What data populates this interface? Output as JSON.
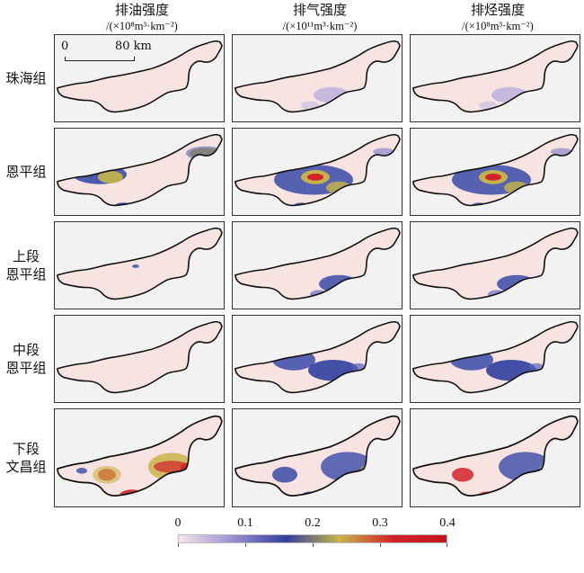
{
  "columns": [
    {
      "title": "排油强度",
      "unit": "/(×10⁸m³·km⁻²)"
    },
    {
      "title": "排气强度",
      "unit": "/(×10¹¹m³·km⁻²)"
    },
    {
      "title": "排烃强度",
      "unit": "/(×10⁸m³·km⁻²)"
    }
  ],
  "rows": [
    {
      "line1": "珠海组",
      "line2": ""
    },
    {
      "line1": "恩平组",
      "line2": ""
    },
    {
      "line1": "上段",
      "line2": "恩平组"
    },
    {
      "line1": "中段",
      "line2": "恩平组"
    },
    {
      "line1": "下段",
      "line2": "文昌组"
    }
  ],
  "scalebar": {
    "start": "0",
    "end": "80 km"
  },
  "colorbar": {
    "ticks": [
      "0",
      "0.1",
      "0.2",
      "0.3",
      "0.4"
    ],
    "min": 0,
    "max": 0.4,
    "colors": [
      "#f6e6ee",
      "#9a8fd0",
      "#2f3f9e",
      "#c9b449",
      "#d2222a",
      "#c4141e"
    ]
  }
}
